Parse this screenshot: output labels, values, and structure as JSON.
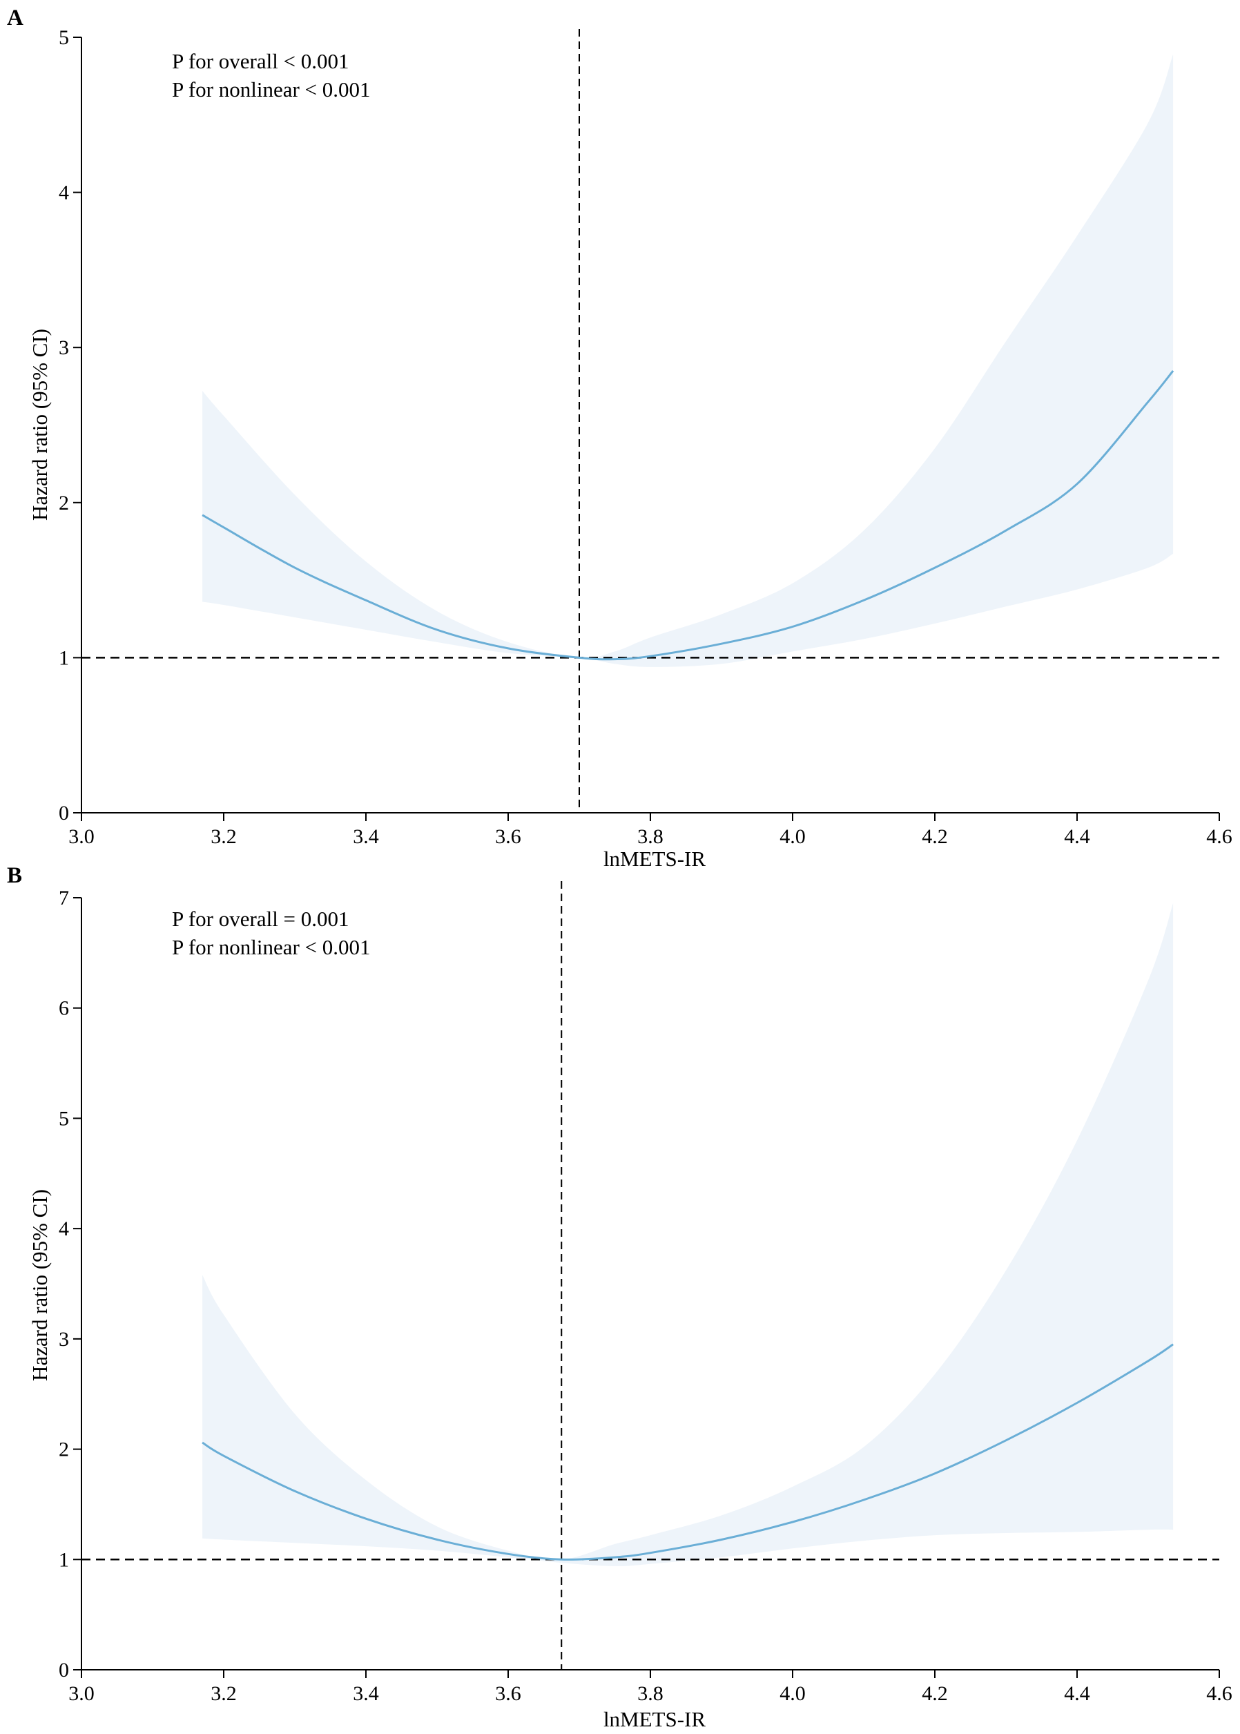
{
  "chart_data": [
    {
      "panel": "A",
      "type": "line",
      "xlabel": "lnMETS-IR",
      "ylabel": "Hazard ratio (95% CI)",
      "xlim": [
        3.0,
        4.6
      ],
      "ylim": [
        0,
        5
      ],
      "xticks": [
        "3.0",
        "3.2",
        "3.4",
        "3.6",
        "3.8",
        "4.0",
        "4.2",
        "4.4",
        "4.6"
      ],
      "yticks": [
        "0",
        "1",
        "2",
        "3",
        "4",
        "5"
      ],
      "annotations": [
        "P for overall < 0.001",
        "P for nonlinear < 0.001"
      ],
      "reference_lines": {
        "hr": 1,
        "x": 3.7
      },
      "series": [
        {
          "name": "Hazard ratio",
          "color": "#6aaed6",
          "x": [
            3.17,
            3.2,
            3.3,
            3.4,
            3.5,
            3.6,
            3.7,
            3.75,
            3.8,
            3.9,
            4.0,
            4.1,
            4.2,
            4.3,
            4.4,
            4.5,
            4.535
          ],
          "y": [
            1.92,
            1.84,
            1.58,
            1.37,
            1.18,
            1.06,
            1.0,
            0.99,
            1.01,
            1.09,
            1.2,
            1.37,
            1.58,
            1.82,
            2.12,
            2.65,
            2.85
          ],
          "lower": [
            1.36,
            1.34,
            1.26,
            1.18,
            1.1,
            1.03,
            1.0,
            0.96,
            0.94,
            0.96,
            1.04,
            1.12,
            1.22,
            1.33,
            1.44,
            1.58,
            1.67
          ],
          "upper": [
            2.72,
            2.56,
            2.05,
            1.62,
            1.3,
            1.1,
            1.0,
            1.04,
            1.13,
            1.28,
            1.48,
            1.82,
            2.35,
            3.04,
            3.72,
            4.45,
            4.89
          ]
        }
      ]
    },
    {
      "panel": "B",
      "type": "line",
      "xlabel": "lnMETS-IR",
      "ylabel": "Hazard ratio (95% CI)",
      "xlim": [
        3.0,
        4.6
      ],
      "ylim": [
        0,
        7
      ],
      "xticks": [
        "3.0",
        "3.2",
        "3.4",
        "3.6",
        "3.8",
        "4.0",
        "4.2",
        "4.4",
        "4.6"
      ],
      "yticks": [
        "0",
        "1",
        "2",
        "3",
        "4",
        "5",
        "6",
        "7"
      ],
      "annotations": [
        "P for overall = 0.001",
        "P for nonlinear < 0.001"
      ],
      "reference_lines": {
        "hr": 1,
        "x": 3.675
      },
      "series": [
        {
          "name": "Hazard ratio",
          "color": "#6aaed6",
          "x": [
            3.17,
            3.2,
            3.3,
            3.4,
            3.5,
            3.6,
            3.675,
            3.75,
            3.8,
            3.9,
            4.0,
            4.1,
            4.2,
            4.3,
            4.4,
            4.5,
            4.535
          ],
          "y": [
            2.06,
            1.94,
            1.62,
            1.37,
            1.18,
            1.05,
            1.0,
            1.02,
            1.06,
            1.18,
            1.34,
            1.54,
            1.78,
            2.08,
            2.42,
            2.8,
            2.95
          ],
          "lower": [
            1.19,
            1.18,
            1.15,
            1.12,
            1.08,
            1.02,
            0.97,
            0.94,
            0.96,
            1.02,
            1.1,
            1.17,
            1.22,
            1.24,
            1.25,
            1.27,
            1.27
          ],
          "upper": [
            3.58,
            3.22,
            2.32,
            1.72,
            1.3,
            1.08,
            1.0,
            1.14,
            1.22,
            1.4,
            1.66,
            2.02,
            2.68,
            3.62,
            4.8,
            6.25,
            6.95
          ]
        }
      ]
    }
  ],
  "colors": {
    "band": "#eef4fa",
    "line": "#6aaed6",
    "axis": "#000000"
  }
}
